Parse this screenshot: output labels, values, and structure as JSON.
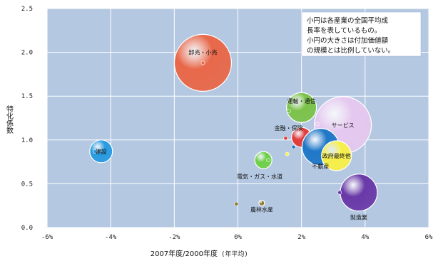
{
  "chart_data": {
    "type": "scatter",
    "xlabel": "2007年度/2000年度",
    "xlabel_unit": "(年平均)",
    "ylabel": "特化係数",
    "xlim": [
      -6,
      6
    ],
    "ylim": [
      0,
      2.5
    ],
    "x_ticks": [
      "-6%",
      "-4%",
      "-2%",
      "0%",
      "2%",
      "4%",
      "6%"
    ],
    "y_ticks": [
      "0.0",
      "0.5",
      "1.0",
      "1.5",
      "2.0",
      "2.5"
    ],
    "grid": true,
    "note": [
      "小円は各産業の全国平均成",
      "長率を表しているもの。",
      "小円の大きさは付加価値額",
      "の規模とは比例していない。"
    ],
    "series": [
      {
        "name": "卸売・小売",
        "x": -1.1,
        "y": 1.88,
        "small_x": -1.1,
        "small_y": 1.88,
        "color": "#e8684a"
      },
      {
        "name": "建設",
        "x": -4.3,
        "y": 0.87,
        "small_x": -4.5,
        "small_y": 0.87,
        "color": "#2a9be0"
      },
      {
        "name": "運輸・通信",
        "x": 2.0,
        "y": 1.37,
        "small_x": 1.6,
        "small_y": 1.33,
        "color": "#7cc24b"
      },
      {
        "name": "金融・保険",
        "x": 2.0,
        "y": 1.03,
        "small_x": 1.5,
        "small_y": 1.02,
        "color": "#e23b3b"
      },
      {
        "name": "サービス",
        "x": 3.3,
        "y": 1.17,
        "small_x": 2.5,
        "small_y": 1.18,
        "color": "#e5c8ef"
      },
      {
        "name": "不動産",
        "x": 2.6,
        "y": 0.92,
        "small_x": 1.75,
        "small_y": 0.92,
        "color": "#1f78c8"
      },
      {
        "name": "政府最終他",
        "x": 3.1,
        "y": 0.82,
        "small_x": 1.55,
        "small_y": 0.84,
        "color": "#f6ef4a"
      },
      {
        "name": "電気・ガス・水道",
        "x": 0.8,
        "y": 0.77,
        "small_x": 0.95,
        "small_y": 0.77,
        "color": "#6fcf4a"
      },
      {
        "name": "製造業",
        "x": 3.8,
        "y": 0.4,
        "small_x": 3.2,
        "small_y": 0.4,
        "color": "#6a3aa8"
      },
      {
        "name": "農林水産",
        "x": 0.75,
        "y": 0.28,
        "small_x": -0.05,
        "small_y": 0.27,
        "color": "#8a7a30"
      }
    ]
  }
}
